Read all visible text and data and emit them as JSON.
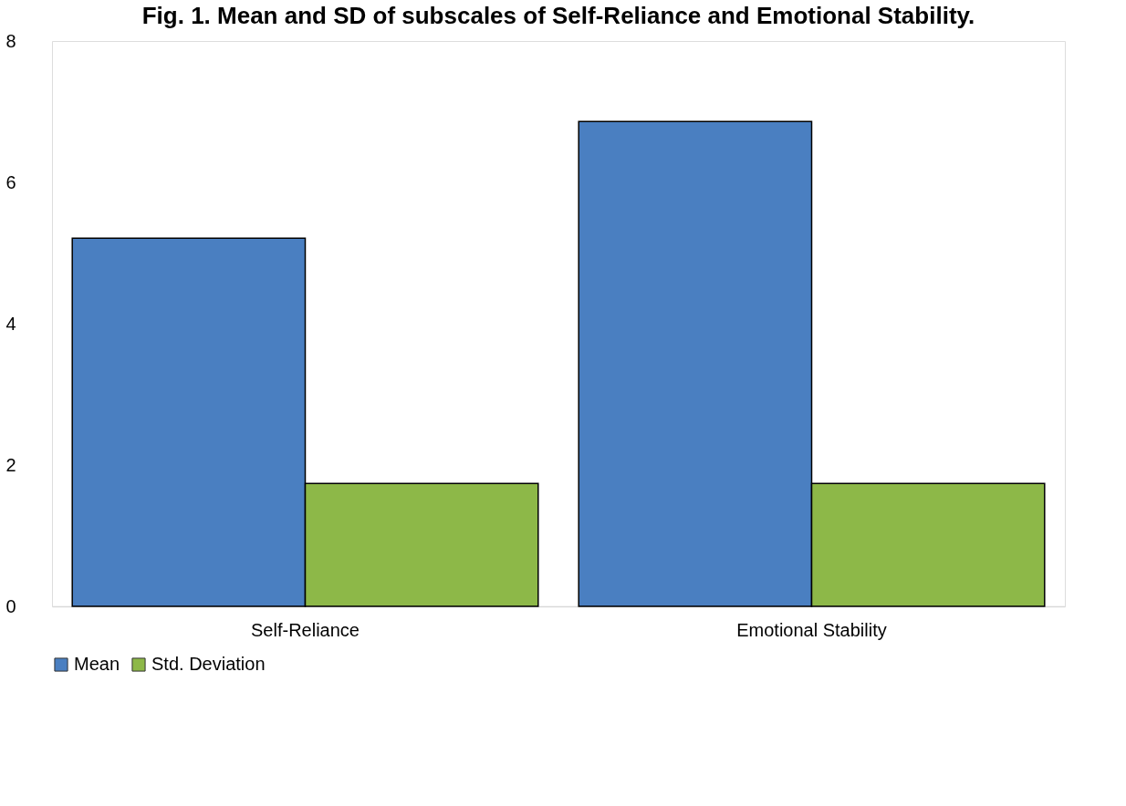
{
  "chart_data": {
    "type": "bar",
    "title": "Fig. 1. Mean and SD of subscales of Self-Reliance and Emotional Stability.",
    "categories": [
      "Self-Reliance",
      "Emotional Stability"
    ],
    "series": [
      {
        "name": "Mean",
        "color": "#4a7fc1",
        "values": [
          5.21,
          6.86
        ]
      },
      {
        "name": "Std. Deviation",
        "color": "#8db848",
        "values": [
          1.74,
          1.74
        ]
      }
    ],
    "ylim": [
      0,
      8
    ],
    "yticks": [
      0,
      2,
      4,
      6,
      8
    ],
    "grid": false,
    "legend": "bottom"
  }
}
